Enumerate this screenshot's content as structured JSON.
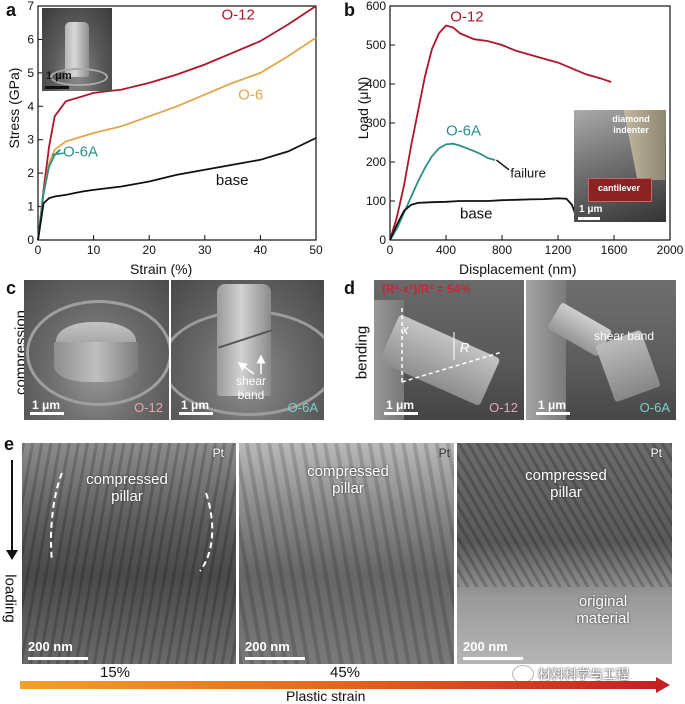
{
  "panels": {
    "a": {
      "letter": "a",
      "xlabel": "Strain (%)",
      "ylabel": "Stress (GPa)",
      "xticks": [
        "0",
        "10",
        "20",
        "30",
        "40",
        "50"
      ],
      "yticks": [
        "0",
        "1",
        "2",
        "3",
        "4",
        "5",
        "6",
        "7"
      ],
      "labels": {
        "o12": "O-12",
        "o6": "O-6",
        "o6a": "O-6A",
        "base": "base"
      },
      "inset_scale": "1 μm",
      "colors": {
        "o12": "#b0152c",
        "o6": "#e3a548",
        "o6a": "#2a8f86",
        "base": "#111111"
      }
    },
    "b": {
      "letter": "b",
      "xlabel": "Displacement (nm)",
      "ylabel": "Load (μN)",
      "xticks": [
        "0",
        "400",
        "800",
        "1200",
        "1600",
        "2000"
      ],
      "yticks": [
        "0",
        "100",
        "200",
        "300",
        "400",
        "500",
        "600"
      ],
      "labels": {
        "o12": "O-12",
        "o6a": "O-6A",
        "base": "base",
        "failure": "failure"
      },
      "inset": {
        "indenter": "diamond indenter",
        "cantilever": "cantilever",
        "scale": "1 μm"
      }
    },
    "c": {
      "letter": "c",
      "side_label": "compression",
      "left": {
        "scale": "1 μm",
        "sample": "O-12"
      },
      "right": {
        "scale": "1 μm",
        "sample": "O-6A",
        "annotation": "shear band"
      }
    },
    "d": {
      "letter": "d",
      "side_label": "bending",
      "formula": "(R²-x²)/R² = 54%",
      "left": {
        "scale": "1 μm",
        "sample": "O-12",
        "x": "x",
        "r": "R"
      },
      "right": {
        "scale": "1 μm",
        "sample": "O-6A",
        "annotation": "shear band"
      }
    },
    "e": {
      "letter": "e",
      "loading": "loading",
      "images": [
        {
          "pt": "Pt",
          "title": "compressed pillar",
          "scale": "200 nm",
          "strain": "15%"
        },
        {
          "pt": "Pt",
          "title": "compressed pillar",
          "scale": "200 nm",
          "strain": "45%"
        },
        {
          "pt": "Pt",
          "title": "compressed pillar",
          "scale": "200 nm",
          "extra": "original material"
        }
      ],
      "bar_label": "Plastic strain"
    },
    "watermark": "材料科学与工程"
  },
  "chart_data": [
    {
      "type": "line",
      "xlabel": "Strain (%)",
      "ylabel": "Stress (GPa)",
      "xlim": [
        0,
        50
      ],
      "ylim": [
        0,
        7
      ],
      "series": [
        {
          "name": "O-12",
          "x": [
            0,
            1,
            2,
            3,
            5,
            8,
            10,
            15,
            20,
            25,
            30,
            35,
            40,
            45,
            50
          ],
          "y": [
            0,
            1.5,
            2.8,
            3.7,
            4.15,
            4.3,
            4.4,
            4.5,
            4.7,
            4.95,
            5.25,
            5.6,
            5.95,
            6.45,
            7.0
          ]
        },
        {
          "name": "O-6",
          "x": [
            0,
            1,
            2,
            3,
            5,
            8,
            10,
            15,
            20,
            25,
            30,
            35,
            40,
            45,
            50
          ],
          "y": [
            0,
            1.4,
            2.3,
            2.7,
            2.95,
            3.1,
            3.2,
            3.4,
            3.7,
            4.0,
            4.35,
            4.7,
            5.0,
            5.5,
            6.05
          ]
        },
        {
          "name": "O-6A",
          "x": [
            0,
            1,
            2,
            3,
            4
          ],
          "y": [
            0,
            1.4,
            2.2,
            2.55,
            2.7
          ]
        },
        {
          "name": "base",
          "x": [
            0,
            1,
            2,
            3,
            5,
            8,
            10,
            15,
            20,
            25,
            30,
            35,
            40,
            45,
            50
          ],
          "y": [
            0,
            1.1,
            1.25,
            1.3,
            1.35,
            1.45,
            1.5,
            1.6,
            1.75,
            1.95,
            2.1,
            2.25,
            2.4,
            2.65,
            3.05
          ]
        }
      ]
    },
    {
      "type": "line",
      "xlabel": "Displacement (nm)",
      "ylabel": "Load (μN)",
      "xlim": [
        0,
        2000
      ],
      "ylim": [
        0,
        600
      ],
      "series": [
        {
          "name": "O-12",
          "x": [
            0,
            50,
            100,
            150,
            200,
            250,
            300,
            350,
            400,
            450,
            500,
            600,
            700,
            800,
            900,
            1000,
            1100,
            1200,
            1300,
            1400,
            1500,
            1580
          ],
          "y": [
            0,
            60,
            140,
            240,
            330,
            420,
            490,
            530,
            550,
            545,
            530,
            515,
            510,
            500,
            485,
            475,
            465,
            455,
            440,
            425,
            415,
            405
          ]
        },
        {
          "name": "O-6A",
          "x": [
            0,
            50,
            100,
            150,
            200,
            250,
            300,
            350,
            400,
            450,
            500,
            550,
            600,
            650,
            700,
            750
          ],
          "y": [
            0,
            30,
            70,
            110,
            150,
            185,
            215,
            235,
            245,
            247,
            242,
            235,
            228,
            220,
            210,
            205
          ]
        },
        {
          "name": "base",
          "x": [
            0,
            50,
            100,
            150,
            200,
            300,
            400,
            500,
            600,
            700,
            800,
            900,
            1000,
            1100,
            1200,
            1260,
            1300,
            1330
          ],
          "y": [
            0,
            40,
            75,
            90,
            95,
            97,
            98,
            100,
            100,
            100,
            102,
            103,
            104,
            105,
            107,
            106,
            90,
            60
          ]
        }
      ]
    }
  ]
}
